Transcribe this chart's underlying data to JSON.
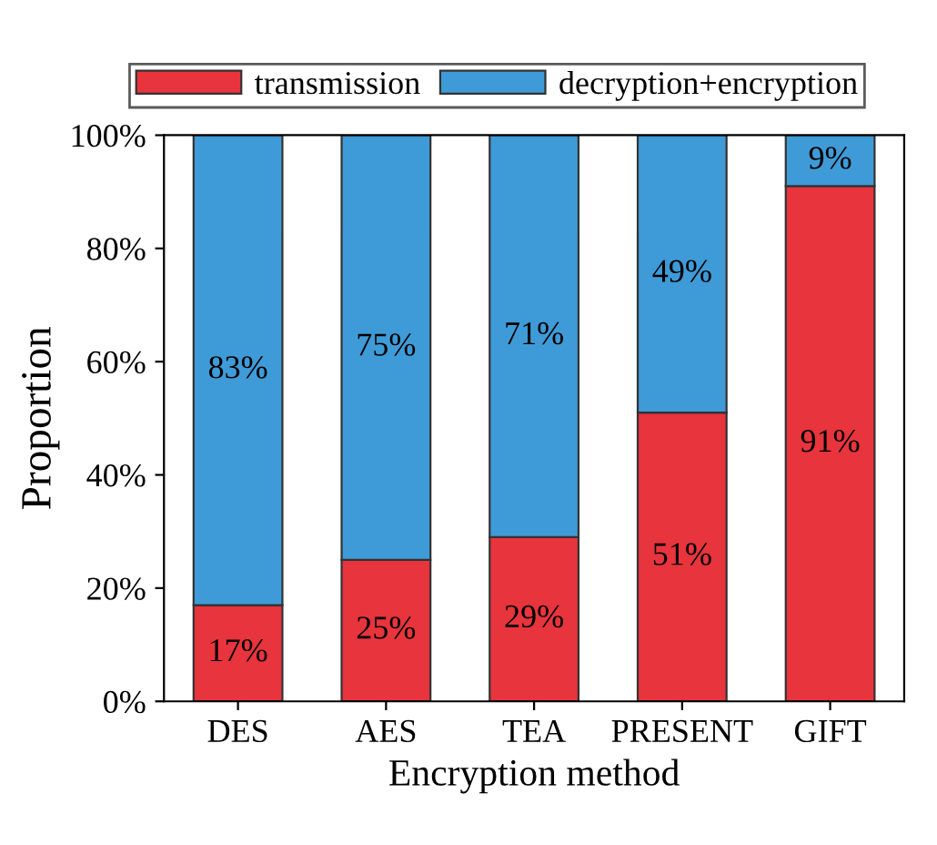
{
  "chart_data": {
    "type": "bar",
    "stacked": true,
    "xlabel": "Encryption method",
    "ylabel": "Proportion",
    "categories": [
      "DES",
      "AES",
      "TEA",
      "PRESENT",
      "GIFT"
    ],
    "series": [
      {
        "name": "transmission",
        "color": "#e8343c",
        "values": [
          17,
          25,
          29,
          51,
          91
        ],
        "value_labels": [
          "17%",
          "25%",
          "29%",
          "51%",
          "91%"
        ]
      },
      {
        "name": "decryption+encryption",
        "color": "#3f9bd8",
        "values": [
          83,
          75,
          71,
          49,
          9
        ],
        "value_labels": [
          "83%",
          "75%",
          "71%",
          "49%",
          "9%"
        ]
      }
    ],
    "ylim": [
      0,
      100
    ],
    "yticks": [
      {
        "value": 0,
        "label": "0%"
      },
      {
        "value": 20,
        "label": "20%"
      },
      {
        "value": 40,
        "label": "40%"
      },
      {
        "value": 60,
        "label": "60%"
      },
      {
        "value": 80,
        "label": "80%"
      },
      {
        "value": 100,
        "label": "100%"
      }
    ],
    "grid": false,
    "legend": "top"
  }
}
